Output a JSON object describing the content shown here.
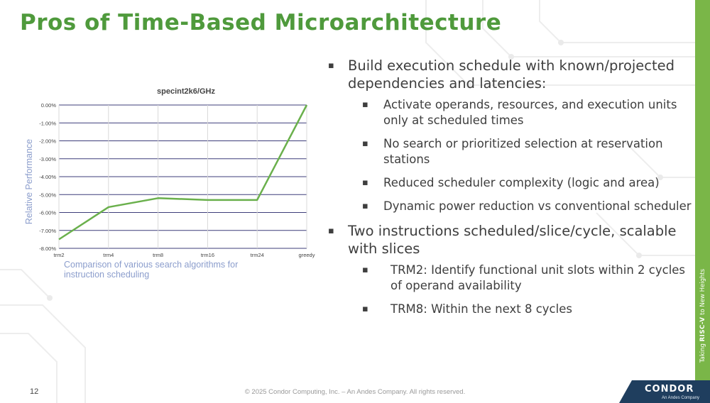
{
  "slide": {
    "title": "Pros of Time-Based Microarchitecture",
    "page_number": "12",
    "footer": "© 2025 Condor Computing, Inc. – An Andes Company. All rights reserved.",
    "tagline_prefix": "Taking",
    "tagline_brand": "RISC-V",
    "tagline_suffix": "to New Heights",
    "logo_text": "CONDOR",
    "logo_subtext": "An Andes Company"
  },
  "bullets": [
    {
      "level": 1,
      "text": "Build execution schedule with known/projected dependencies and latencies:"
    },
    {
      "level": 2,
      "text": "Activate operands, resources, and execution units only at scheduled times"
    },
    {
      "level": 2,
      "text": "No search or prioritized selection at reservation stations"
    },
    {
      "level": 2,
      "text": "Reduced scheduler complexity (logic and area)"
    },
    {
      "level": 2,
      "text": "Dynamic power reduction vs conventional scheduler"
    },
    {
      "level": 1,
      "text": "Two instructions scheduled/slice/cycle, scalable with slices"
    },
    {
      "level": 2,
      "deep": true,
      "text": "TRM2: Identify functional unit slots within 2 cycles of operand availability"
    },
    {
      "level": 2,
      "deep": true,
      "text": "TRM8: Within the next 8 cycles"
    }
  ],
  "chart_data": {
    "type": "line",
    "title": "specint2k6/GHz",
    "ylabel": "Relative Performance",
    "xlabel": "",
    "caption": "Comparison of various search algorithms for instruction scheduling",
    "categories": [
      "trm2",
      "trm4",
      "trm8",
      "trm16",
      "trm24",
      "greedy"
    ],
    "values": [
      -7.5,
      -5.7,
      -5.2,
      -5.3,
      -5.3,
      0.0
    ],
    "ylim": [
      -8,
      0
    ],
    "yticks": [
      "0.00%",
      "-1.00%",
      "-2.00%",
      "-3.00%",
      "-4.00%",
      "-5.00%",
      "-6.00%",
      "-7.00%",
      "-8.00%"
    ],
    "grid": true,
    "legend": "none",
    "line_color": "#6ab04c",
    "grid_color": "#3d3d7a"
  },
  "colors": {
    "title": "#4f9a3c",
    "accent_bar": "#7ab648",
    "logo_bg": "#1f3e5e",
    "axis_label": "#8b9dcc"
  }
}
